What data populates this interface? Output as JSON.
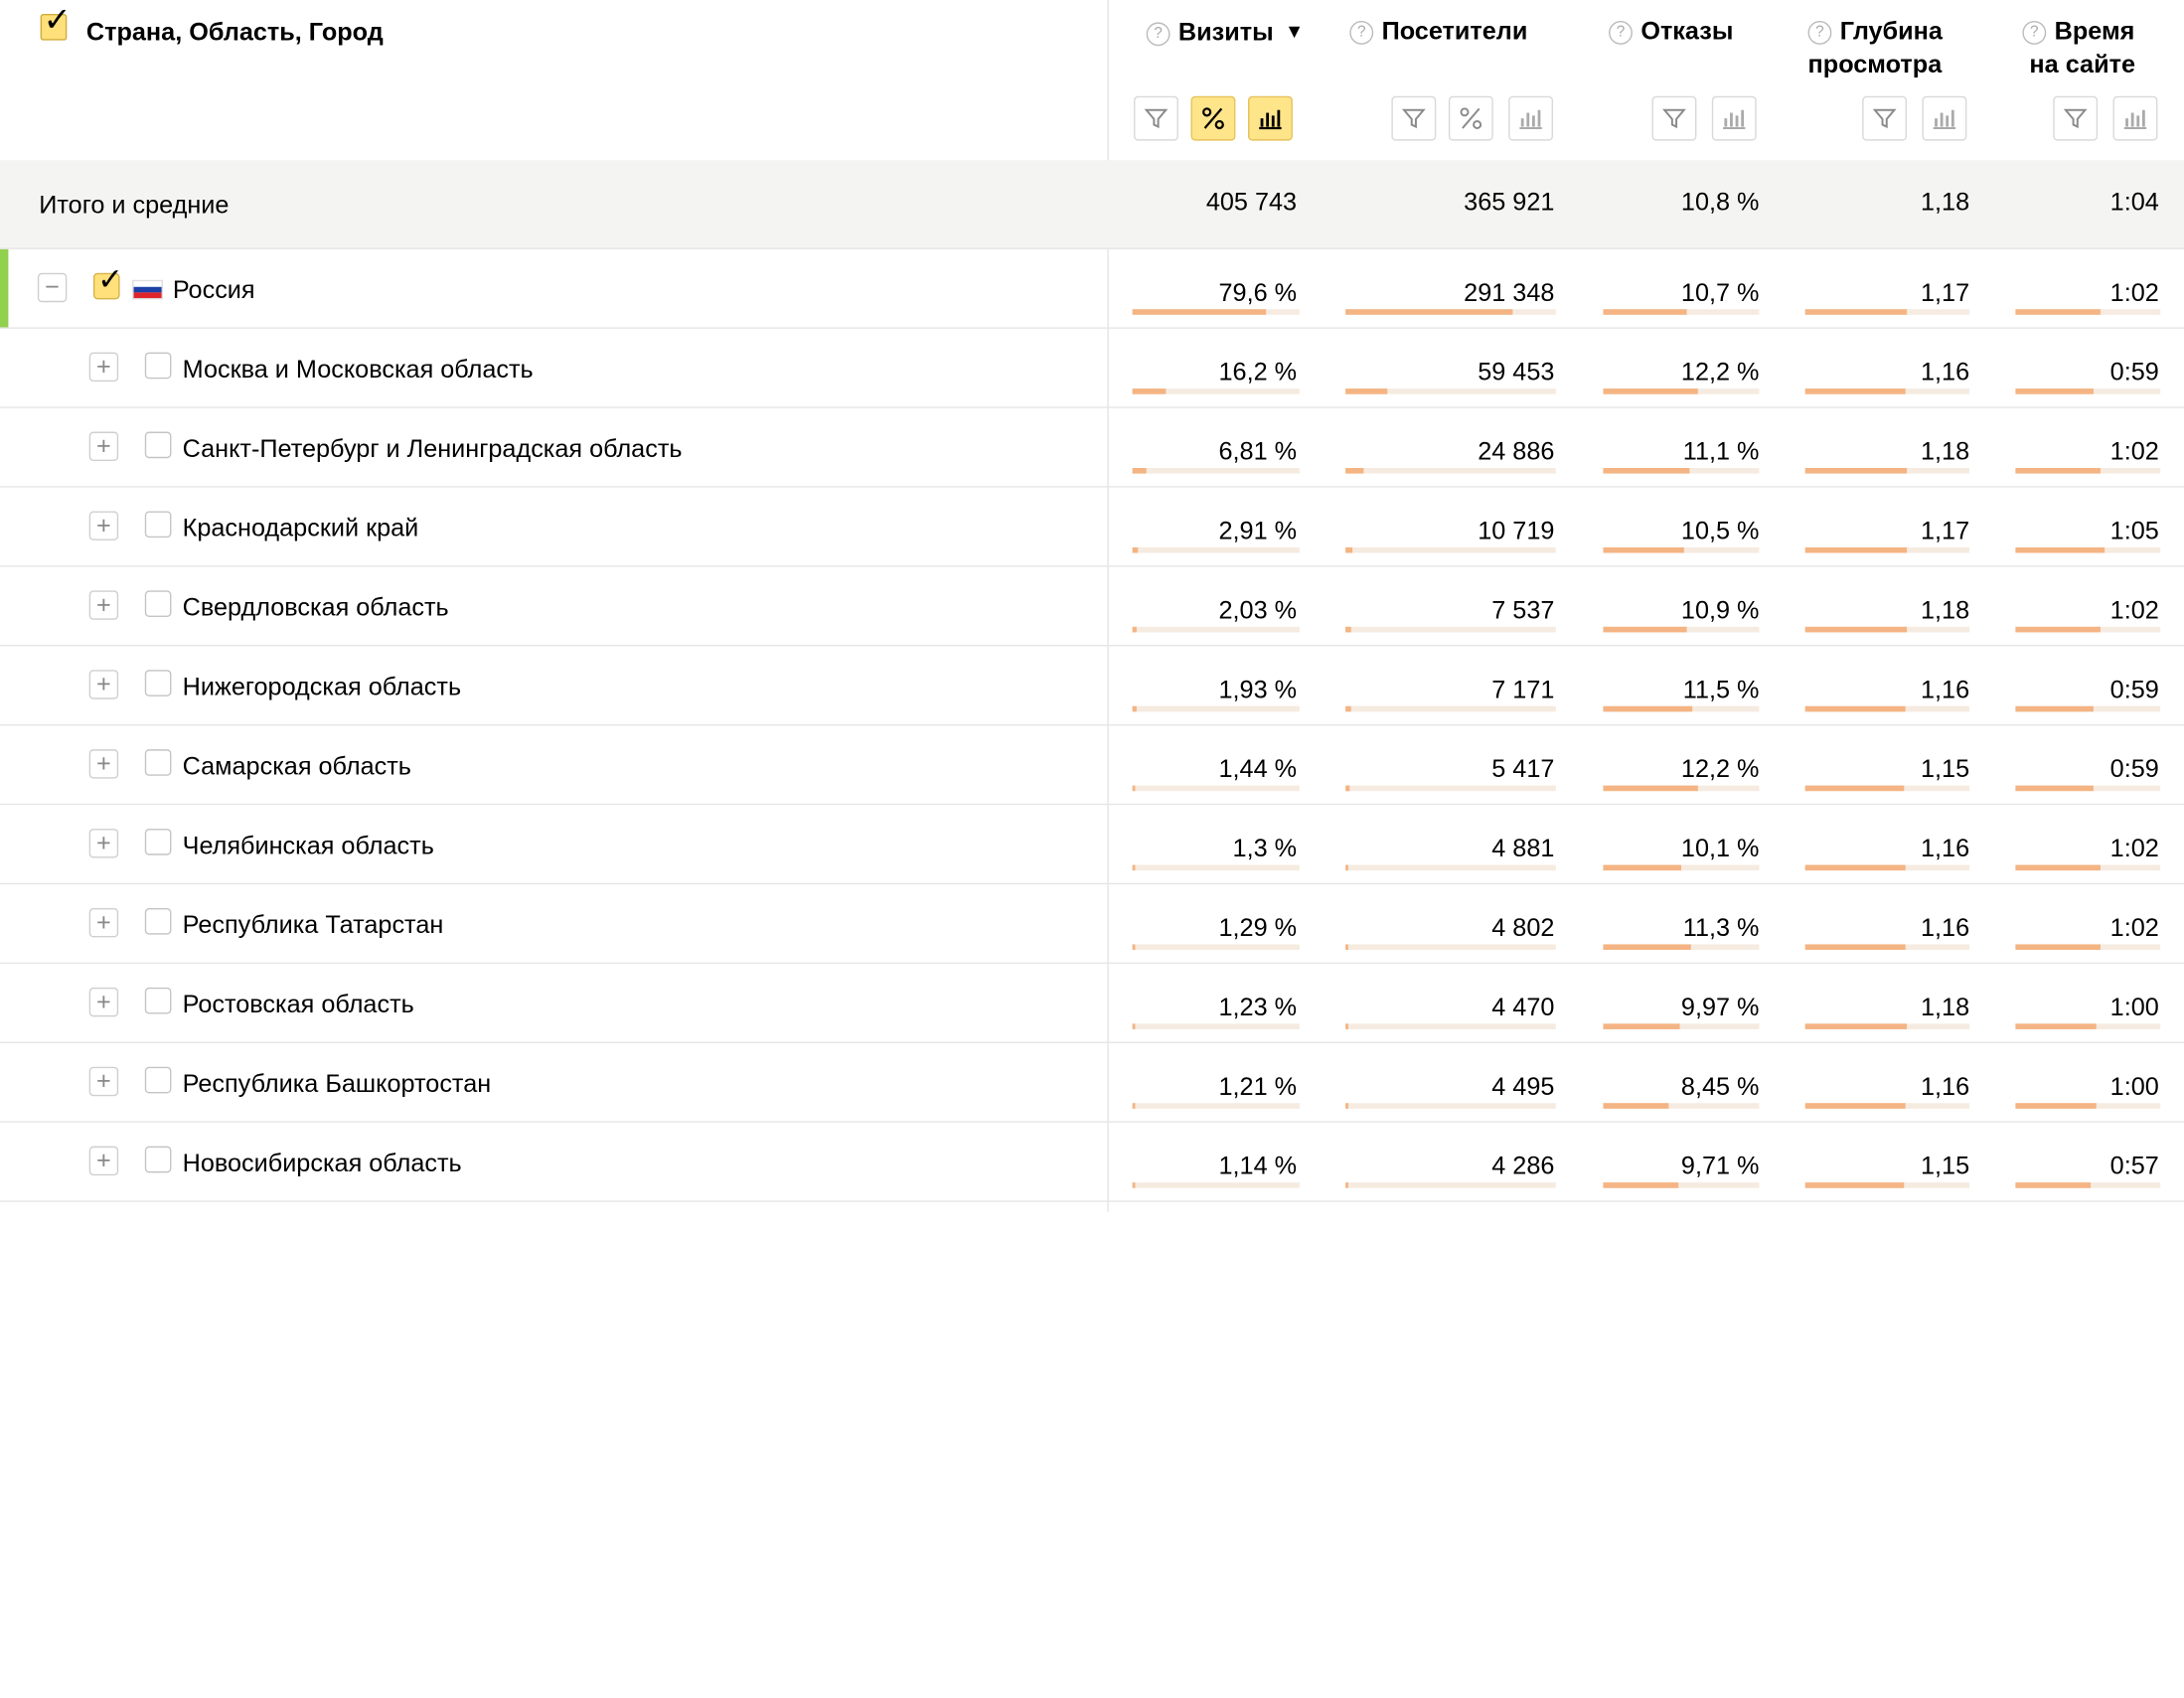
{
  "header": {
    "dimension_title": "Страна, Область, Город",
    "columns": [
      {
        "key": "visits",
        "title_line1": "Визиты",
        "title_line2": "",
        "sorted": true,
        "sort_arrow": "▼"
      },
      {
        "key": "visitors",
        "title_line1": "Посетители",
        "title_line2": ""
      },
      {
        "key": "bounce",
        "title_line1": "Отказы",
        "title_line2": ""
      },
      {
        "key": "depth",
        "title_line1": "Глубина",
        "title_line2": "просмотра"
      },
      {
        "key": "time",
        "title_line1": "Время",
        "title_line2": "на сайте"
      }
    ]
  },
  "totals": {
    "label": "Итого и средние",
    "visits": "405 743",
    "visitors": "365 921",
    "bounce": "10,8 %",
    "depth": "1,18",
    "time": "1:04"
  },
  "rows": [
    {
      "name": "Россия",
      "level": 0,
      "expanded": true,
      "checked": true,
      "flag": "ru",
      "visits": "79,6 %",
      "visitors": "291 348",
      "bounce": "10,7 %",
      "depth": "1,17",
      "time": "1:02",
      "bars": {
        "visits": 0.796,
        "visitors": 0.796,
        "bounce": 0.54,
        "depth": 0.62,
        "time": 0.59
      }
    },
    {
      "name": "Москва и Московская область",
      "level": 1,
      "expanded": false,
      "checked": false,
      "visits": "16,2 %",
      "visitors": "59 453",
      "bounce": "12,2 %",
      "depth": "1,16",
      "time": "0:59",
      "bars": {
        "visits": 0.2,
        "visitors": 0.2,
        "bounce": 0.61,
        "depth": 0.61,
        "time": 0.54
      }
    },
    {
      "name": "Санкт-Петербург и Ленинградская область",
      "level": 1,
      "expanded": false,
      "checked": false,
      "visits": "6,81 %",
      "visitors": "24 886",
      "bounce": "11,1 %",
      "depth": "1,18",
      "time": "1:02",
      "bars": {
        "visits": 0.085,
        "visitors": 0.085,
        "bounce": 0.55,
        "depth": 0.62,
        "time": 0.59
      }
    },
    {
      "name": "Краснодарский край",
      "level": 1,
      "expanded": false,
      "checked": false,
      "visits": "2,91 %",
      "visitors": "10 719",
      "bounce": "10,5 %",
      "depth": "1,17",
      "time": "1:05",
      "bars": {
        "visits": 0.036,
        "visitors": 0.036,
        "bounce": 0.52,
        "depth": 0.62,
        "time": 0.62
      }
    },
    {
      "name": "Свердловская область",
      "level": 1,
      "expanded": false,
      "checked": false,
      "visits": "2,03 %",
      "visitors": "7 537",
      "bounce": "10,9 %",
      "depth": "1,18",
      "time": "1:02",
      "bars": {
        "visits": 0.025,
        "visitors": 0.025,
        "bounce": 0.54,
        "depth": 0.62,
        "time": 0.59
      }
    },
    {
      "name": "Нижегородская область",
      "level": 1,
      "expanded": false,
      "checked": false,
      "visits": "1,93 %",
      "visitors": "7 171",
      "bounce": "11,5 %",
      "depth": "1,16",
      "time": "0:59",
      "bars": {
        "visits": 0.024,
        "visitors": 0.024,
        "bounce": 0.57,
        "depth": 0.61,
        "time": 0.54
      }
    },
    {
      "name": "Самарская область",
      "level": 1,
      "expanded": false,
      "checked": false,
      "visits": "1,44 %",
      "visitors": "5 417",
      "bounce": "12,2 %",
      "depth": "1,15",
      "time": "0:59",
      "bars": {
        "visits": 0.018,
        "visitors": 0.018,
        "bounce": 0.61,
        "depth": 0.6,
        "time": 0.54
      }
    },
    {
      "name": "Челябинская область",
      "level": 1,
      "expanded": false,
      "checked": false,
      "visits": "1,3 %",
      "visitors": "4 881",
      "bounce": "10,1 %",
      "depth": "1,16",
      "time": "1:02",
      "bars": {
        "visits": 0.016,
        "visitors": 0.016,
        "bounce": 0.5,
        "depth": 0.61,
        "time": 0.59
      }
    },
    {
      "name": "Республика Татарстан",
      "level": 1,
      "expanded": false,
      "checked": false,
      "visits": "1,29 %",
      "visitors": "4 802",
      "bounce": "11,3 %",
      "depth": "1,16",
      "time": "1:02",
      "bars": {
        "visits": 0.016,
        "visitors": 0.016,
        "bounce": 0.56,
        "depth": 0.61,
        "time": 0.59
      }
    },
    {
      "name": "Ростовская область",
      "level": 1,
      "expanded": false,
      "checked": false,
      "visits": "1,23 %",
      "visitors": "4 470",
      "bounce": "9,97 %",
      "depth": "1,18",
      "time": "1:00",
      "bars": {
        "visits": 0.015,
        "visitors": 0.015,
        "bounce": 0.49,
        "depth": 0.62,
        "time": 0.56
      }
    },
    {
      "name": "Республика Башкортостан",
      "level": 1,
      "expanded": false,
      "checked": false,
      "visits": "1,21 %",
      "visitors": "4 495",
      "bounce": "8,45 %",
      "depth": "1,16",
      "time": "1:00",
      "bars": {
        "visits": 0.015,
        "visitors": 0.015,
        "bounce": 0.42,
        "depth": 0.61,
        "time": 0.56
      }
    },
    {
      "name": "Новосибирская область",
      "level": 1,
      "expanded": false,
      "checked": false,
      "visits": "1,14 %",
      "visitors": "4 286",
      "bounce": "9,71 %",
      "depth": "1,15",
      "time": "0:57",
      "bars": {
        "visits": 0.014,
        "visitors": 0.014,
        "bounce": 0.48,
        "depth": 0.6,
        "time": 0.52
      }
    }
  ],
  "icons": {
    "help": "help-icon",
    "filter": "filter-icon",
    "percent": "percent-icon",
    "bars": "bar-chart-icon",
    "expand": "plus-icon",
    "collapse": "minus-icon",
    "checkbox": "checkbox-icon",
    "flag": "russia-flag-icon"
  },
  "colors": {
    "active_button": "#ffe58a",
    "bar_fill": "#f4b483",
    "bar_track": "#f6ebe0",
    "row_accent": "#92d050",
    "totals_bg": "#f4f4f2"
  }
}
